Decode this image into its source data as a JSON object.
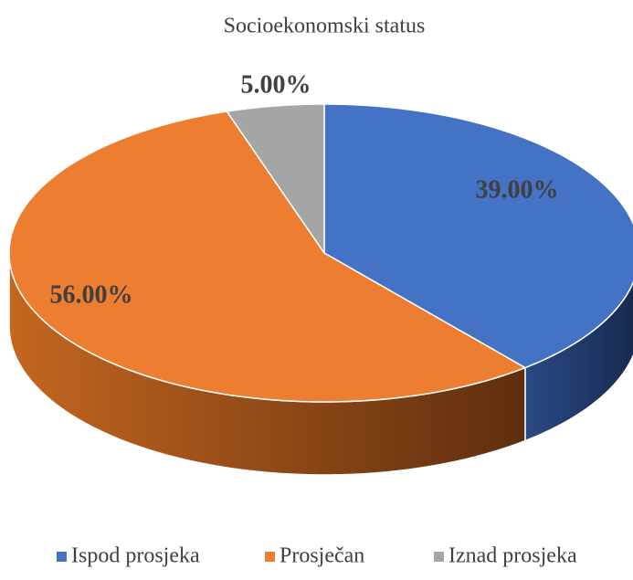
{
  "chart_data": {
    "type": "pie",
    "title": "Socioekonomski status",
    "categories": [
      "Ispod prosjeka",
      "Prosječan",
      "Iznad prosjeka"
    ],
    "values": [
      39,
      56,
      5
    ],
    "value_labels": [
      "39.00%",
      "56.00%",
      "5.00%"
    ],
    "colors": [
      "#4472c4",
      "#ed7d31",
      "#a5a5a5"
    ],
    "legend": "bottom"
  }
}
